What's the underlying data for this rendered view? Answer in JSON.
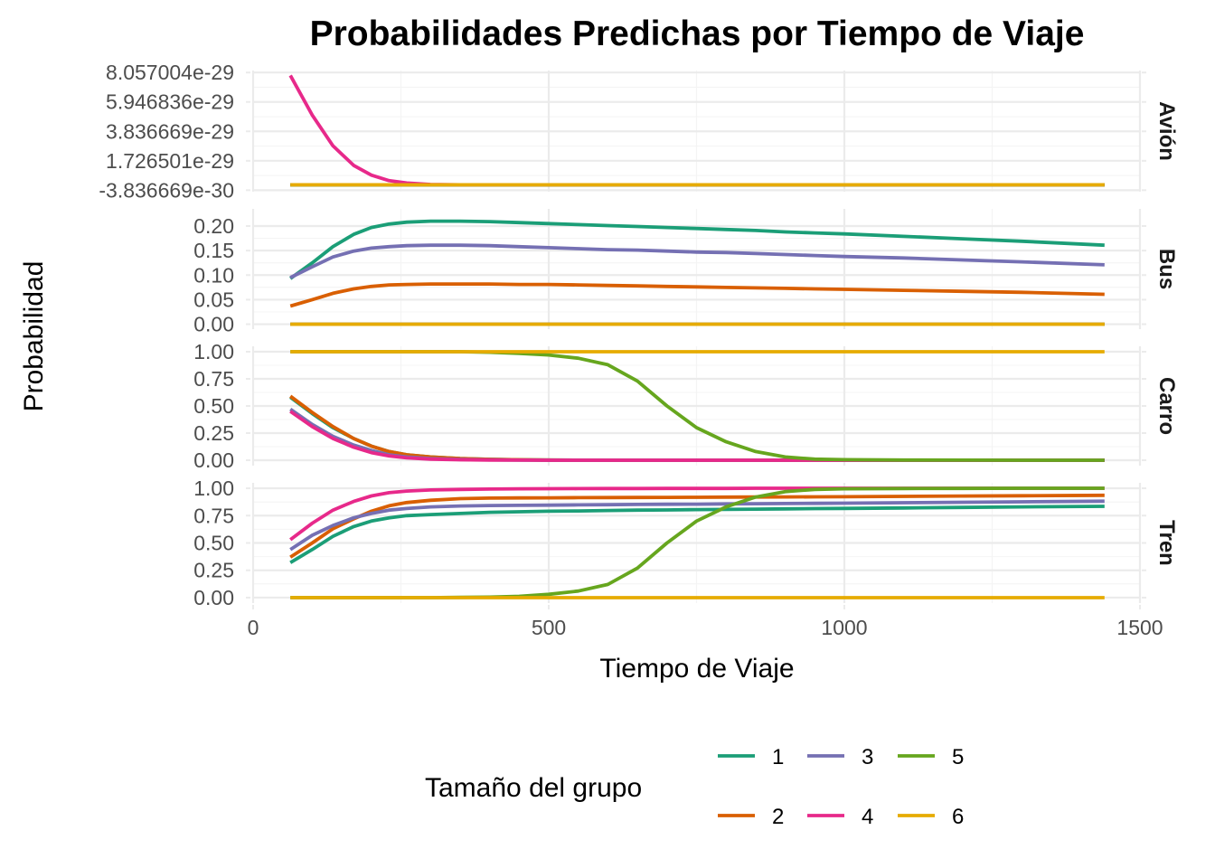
{
  "chart_data": {
    "type": "line",
    "title": "Probabilidades Predichas por Tiempo de Viaje",
    "xlabel": "Tiempo de Viaje",
    "ylabel": "Probabilidad",
    "xlim": [
      0,
      1500
    ],
    "x_ticks": [
      "0",
      "500",
      "1000",
      "1500"
    ],
    "legend": {
      "title": "Tamaño del grupo",
      "position": "bottom",
      "items": [
        {
          "label": "1",
          "color": "#1b9e77"
        },
        {
          "label": "2",
          "color": "#d95f02"
        },
        {
          "label": "3",
          "color": "#7570b3"
        },
        {
          "label": "4",
          "color": "#e7298a"
        },
        {
          "label": "5",
          "color": "#66a61e"
        },
        {
          "label": "6",
          "color": "#e6ab02"
        }
      ]
    },
    "x": [
      63,
      100,
      135,
      170,
      200,
      230,
      260,
      300,
      350,
      400,
      450,
      500,
      550,
      600,
      650,
      700,
      750,
      800,
      850,
      900,
      950,
      1000,
      1100,
      1200,
      1300,
      1440
    ],
    "panels": [
      {
        "name": "Avión",
        "ylim": [
          -4.9e-30,
          8.2e-29
        ],
        "y_ticks": [
          -3.836669e-30,
          1.726501e-29,
          3.836669e-29,
          5.946836e-29,
          8.057004e-29
        ],
        "y_tick_labels": [
          "-3.836669e-30",
          "1.726501e-29",
          "3.836669e-29",
          "5.946836e-29",
          "8.057004e-29"
        ],
        "series": [
          {
            "group": "1",
            "values": [
              0,
              0,
              0,
              0,
              0,
              0,
              0,
              0,
              0,
              0,
              0,
              0,
              0,
              0,
              0,
              0,
              0,
              0,
              0,
              0,
              0,
              0,
              0,
              0,
              0,
              0
            ]
          },
          {
            "group": "2",
            "values": [
              0,
              0,
              0,
              0,
              0,
              0,
              0,
              0,
              0,
              0,
              0,
              0,
              0,
              0,
              0,
              0,
              0,
              0,
              0,
              0,
              0,
              0,
              0,
              0,
              0,
              0
            ]
          },
          {
            "group": "3",
            "values": [
              0,
              0,
              0,
              0,
              0,
              0,
              0,
              0,
              0,
              0,
              0,
              0,
              0,
              0,
              0,
              0,
              0,
              0,
              0,
              0,
              0,
              0,
              0,
              0,
              0,
              0
            ]
          },
          {
            "group": "4",
            "values": [
              7.85e-29,
              5e-29,
              2.8e-29,
              1.4e-29,
              7e-30,
              3e-30,
              1.3e-30,
              3e-31,
              0,
              0,
              0,
              0,
              0,
              0,
              0,
              0,
              0,
              0,
              0,
              0,
              0,
              0,
              0,
              0,
              0,
              0
            ]
          },
          {
            "group": "5",
            "values": [
              0,
              0,
              0,
              0,
              0,
              0,
              0,
              0,
              0,
              0,
              0,
              0,
              0,
              0,
              0,
              0,
              0,
              0,
              0,
              0,
              0,
              0,
              0,
              0,
              0,
              0
            ]
          },
          {
            "group": "6",
            "values": [
              0,
              0,
              0,
              0,
              0,
              0,
              0,
              0,
              0,
              0,
              0,
              0,
              0,
              0,
              0,
              0,
              0,
              0,
              0,
              0,
              0,
              0,
              0,
              0,
              0,
              0
            ]
          }
        ]
      },
      {
        "name": "Bus",
        "ylim": [
          -0.01,
          0.235
        ],
        "y_ticks": [
          0.0,
          0.05,
          0.1,
          0.15,
          0.2
        ],
        "y_tick_labels": [
          "0.00",
          "0.05",
          "0.10",
          "0.15",
          "0.20"
        ],
        "series": [
          {
            "group": "1",
            "values": [
              0.093,
              0.125,
              0.158,
              0.183,
              0.197,
              0.204,
              0.208,
              0.21,
              0.21,
              0.209,
              0.207,
              0.205,
              0.203,
              0.201,
              0.199,
              0.197,
              0.195,
              0.193,
              0.191,
              0.188,
              0.186,
              0.184,
              0.179,
              0.174,
              0.169,
              0.161
            ]
          },
          {
            "group": "2",
            "values": [
              0.037,
              0.05,
              0.063,
              0.072,
              0.077,
              0.08,
              0.081,
              0.082,
              0.082,
              0.082,
              0.081,
              0.081,
              0.08,
              0.079,
              0.078,
              0.077,
              0.076,
              0.075,
              0.074,
              0.073,
              0.072,
              0.071,
              0.069,
              0.067,
              0.065,
              0.061
            ]
          },
          {
            "group": "3",
            "values": [
              0.095,
              0.117,
              0.137,
              0.149,
              0.155,
              0.158,
              0.16,
              0.161,
              0.161,
              0.16,
              0.158,
              0.156,
              0.154,
              0.152,
              0.151,
              0.149,
              0.147,
              0.146,
              0.144,
              0.142,
              0.14,
              0.138,
              0.135,
              0.131,
              0.127,
              0.121
            ]
          },
          {
            "group": "4",
            "values": [
              0,
              0,
              0,
              0,
              0,
              0,
              0,
              0,
              0,
              0,
              0,
              0,
              0,
              0,
              0,
              0,
              0,
              0,
              0,
              0,
              0,
              0,
              0,
              0,
              0,
              0
            ]
          },
          {
            "group": "5",
            "values": [
              0,
              0,
              0,
              0,
              0,
              0,
              0,
              0,
              0,
              0,
              0,
              0,
              0,
              0,
              0,
              0,
              0,
              0,
              0,
              0,
              0,
              0,
              0,
              0,
              0,
              0
            ]
          },
          {
            "group": "6",
            "values": [
              0,
              0,
              0,
              0,
              0,
              0,
              0,
              0,
              0,
              0,
              0,
              0,
              0,
              0,
              0,
              0,
              0,
              0,
              0,
              0,
              0,
              0,
              0,
              0,
              0,
              0
            ]
          }
        ]
      },
      {
        "name": "Carro",
        "ylim": [
          -0.05,
          1.05
        ],
        "y_ticks": [
          0.0,
          0.25,
          0.5,
          0.75,
          1.0
        ],
        "y_tick_labels": [
          "0.00",
          "0.25",
          "0.50",
          "0.75",
          "1.00"
        ],
        "series": [
          {
            "group": "1",
            "values": [
              0.58,
              0.43,
              0.3,
              0.2,
              0.13,
              0.08,
              0.05,
              0.03,
              0.015,
              0.008,
              0.004,
              0.002,
              0.001,
              0,
              0,
              0,
              0,
              0,
              0,
              0,
              0,
              0,
              0,
              0,
              0,
              0
            ]
          },
          {
            "group": "2",
            "values": [
              0.59,
              0.44,
              0.31,
              0.2,
              0.13,
              0.08,
              0.05,
              0.03,
              0.015,
              0.008,
              0.004,
              0.002,
              0.001,
              0,
              0,
              0,
              0,
              0,
              0,
              0,
              0,
              0,
              0,
              0,
              0,
              0
            ]
          },
          {
            "group": "3",
            "values": [
              0.47,
              0.33,
              0.22,
              0.14,
              0.09,
              0.05,
              0.03,
              0.015,
              0.007,
              0.003,
              0.001,
              0,
              0,
              0,
              0,
              0,
              0,
              0,
              0,
              0,
              0,
              0,
              0,
              0,
              0,
              0
            ]
          },
          {
            "group": "4",
            "values": [
              0.45,
              0.31,
              0.2,
              0.12,
              0.07,
              0.04,
              0.022,
              0.01,
              0.004,
              0.002,
              0.001,
              0,
              0,
              0,
              0,
              0,
              0,
              0,
              0,
              0,
              0,
              0,
              0,
              0,
              0,
              0
            ]
          },
          {
            "group": "5",
            "values": [
              1.0,
              1.0,
              1.0,
              1.0,
              1.0,
              1.0,
              1.0,
              1.0,
              1.0,
              0.995,
              0.985,
              0.97,
              0.94,
              0.88,
              0.73,
              0.5,
              0.3,
              0.17,
              0.08,
              0.03,
              0.01,
              0.005,
              0.002,
              0.001,
              0,
              0
            ]
          },
          {
            "group": "6",
            "values": [
              1.0,
              1.0,
              1.0,
              1.0,
              1.0,
              1.0,
              1.0,
              1.0,
              1.0,
              1.0,
              1.0,
              1.0,
              1.0,
              1.0,
              1.0,
              1.0,
              1.0,
              1.0,
              1.0,
              1.0,
              1.0,
              1.0,
              1.0,
              1.0,
              1.0,
              1.0
            ]
          }
        ]
      },
      {
        "name": "Tren",
        "ylim": [
          -0.05,
          1.05
        ],
        "y_ticks": [
          0.0,
          0.25,
          0.5,
          0.75,
          1.0
        ],
        "y_tick_labels": [
          "0.00",
          "0.25",
          "0.50",
          "0.75",
          "1.00"
        ],
        "series": [
          {
            "group": "1",
            "values": [
              0.32,
              0.44,
              0.56,
              0.65,
              0.7,
              0.73,
              0.75,
              0.76,
              0.77,
              0.78,
              0.785,
              0.79,
              0.793,
              0.797,
              0.8,
              0.802,
              0.805,
              0.807,
              0.809,
              0.812,
              0.814,
              0.816,
              0.82,
              0.825,
              0.83,
              0.835
            ]
          },
          {
            "group": "2",
            "values": [
              0.37,
              0.5,
              0.63,
              0.72,
              0.79,
              0.84,
              0.87,
              0.89,
              0.905,
              0.91,
              0.912,
              0.913,
              0.914,
              0.915,
              0.916,
              0.917,
              0.918,
              0.919,
              0.92,
              0.921,
              0.922,
              0.923,
              0.926,
              0.929,
              0.932,
              0.936
            ]
          },
          {
            "group": "3",
            "values": [
              0.44,
              0.57,
              0.66,
              0.73,
              0.77,
              0.8,
              0.815,
              0.83,
              0.838,
              0.842,
              0.844,
              0.846,
              0.848,
              0.85,
              0.852,
              0.854,
              0.855,
              0.857,
              0.859,
              0.861,
              0.862,
              0.864,
              0.868,
              0.872,
              0.876,
              0.882
            ]
          },
          {
            "group": "4",
            "values": [
              0.53,
              0.68,
              0.8,
              0.88,
              0.93,
              0.96,
              0.975,
              0.985,
              0.99,
              0.993,
              0.995,
              0.996,
              0.997,
              0.998,
              0.998,
              0.999,
              0.999,
              0.999,
              1.0,
              1.0,
              1.0,
              1.0,
              1.0,
              1.0,
              1.0,
              1.0
            ]
          },
          {
            "group": "5",
            "values": [
              0,
              0,
              0,
              0,
              0,
              0,
              0,
              0,
              0.002,
              0.005,
              0.012,
              0.03,
              0.06,
              0.12,
              0.27,
              0.5,
              0.7,
              0.83,
              0.92,
              0.97,
              0.99,
              0.995,
              0.998,
              0.999,
              1.0,
              1.0
            ]
          },
          {
            "group": "6",
            "values": [
              0,
              0,
              0,
              0,
              0,
              0,
              0,
              0,
              0,
              0,
              0,
              0,
              0,
              0,
              0,
              0,
              0,
              0,
              0,
              0,
              0,
              0,
              0,
              0,
              0,
              0
            ]
          }
        ]
      }
    ]
  }
}
